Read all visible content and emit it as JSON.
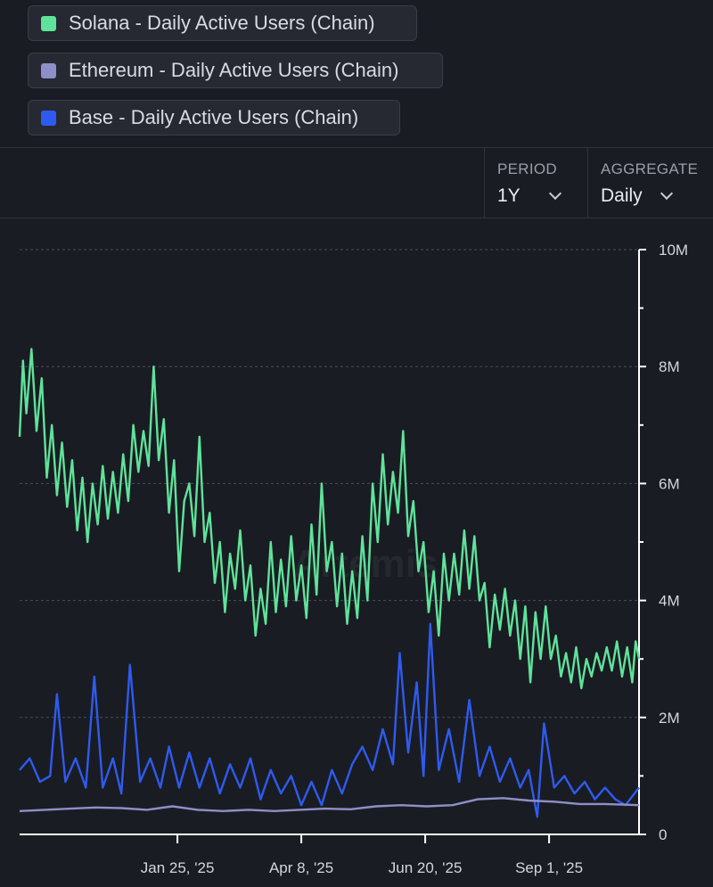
{
  "legend": [
    {
      "label": "Solana - Daily Active Users (Chain)",
      "color": "#5fe39a"
    },
    {
      "label": "Ethereum - Daily Active Users (Chain)",
      "color": "#8d8fc9"
    },
    {
      "label": "Base - Daily Active Users (Chain)",
      "color": "#2e5bef"
    }
  ],
  "controls": {
    "period": {
      "title": "PERIOD",
      "value": "1Y"
    },
    "aggregate": {
      "title": "AGGREGATE",
      "value": "Daily"
    }
  },
  "watermark": "Artemis",
  "chart_data": {
    "type": "line",
    "ylim": [
      0,
      10000000
    ],
    "y_ticks": [
      {
        "value": 0,
        "label": "0"
      },
      {
        "value": 2000000,
        "label": "2M"
      },
      {
        "value": 4000000,
        "label": "4M"
      },
      {
        "value": 6000000,
        "label": "6M"
      },
      {
        "value": 8000000,
        "label": "8M"
      },
      {
        "value": 10000000,
        "label": "10M"
      }
    ],
    "x_start": "2024-10-24",
    "x_end": "2025-10-24",
    "x_ticks": [
      {
        "date": "2025-01-25",
        "label": "Jan 25, '25"
      },
      {
        "date": "2025-04-08",
        "label": "Apr 8, '25"
      },
      {
        "date": "2025-06-20",
        "label": "Jun 20, '25"
      },
      {
        "date": "2025-09-01",
        "label": "Sep 1, '25"
      }
    ],
    "grid": true,
    "series": [
      {
        "name": "Solana - Daily Active Users (Chain)",
        "color": "#5fe39a",
        "points": [
          [
            "2024-10-24",
            6.8
          ],
          [
            "2024-10-26",
            8.1
          ],
          [
            "2024-10-28",
            7.2
          ],
          [
            "2024-10-31",
            8.3
          ],
          [
            "2024-11-03",
            6.9
          ],
          [
            "2024-11-06",
            7.8
          ],
          [
            "2024-11-09",
            6.1
          ],
          [
            "2024-11-12",
            7.0
          ],
          [
            "2024-11-15",
            5.8
          ],
          [
            "2024-11-18",
            6.7
          ],
          [
            "2024-11-21",
            5.6
          ],
          [
            "2024-11-24",
            6.4
          ],
          [
            "2024-11-27",
            5.2
          ],
          [
            "2024-11-30",
            6.1
          ],
          [
            "2024-12-03",
            5.0
          ],
          [
            "2024-12-06",
            6.0
          ],
          [
            "2024-12-09",
            5.3
          ],
          [
            "2024-12-12",
            6.3
          ],
          [
            "2024-12-15",
            5.4
          ],
          [
            "2024-12-18",
            6.2
          ],
          [
            "2024-12-21",
            5.5
          ],
          [
            "2024-12-24",
            6.5
          ],
          [
            "2024-12-27",
            5.7
          ],
          [
            "2024-12-30",
            7.0
          ],
          [
            "2025-01-02",
            6.2
          ],
          [
            "2025-01-05",
            6.9
          ],
          [
            "2025-01-08",
            6.3
          ],
          [
            "2025-01-11",
            8.0
          ],
          [
            "2025-01-14",
            6.4
          ],
          [
            "2025-01-17",
            7.1
          ],
          [
            "2025-01-20",
            5.5
          ],
          [
            "2025-01-23",
            6.4
          ],
          [
            "2025-01-26",
            4.5
          ],
          [
            "2025-01-29",
            5.7
          ],
          [
            "2025-02-01",
            6.0
          ],
          [
            "2025-02-04",
            5.1
          ],
          [
            "2025-02-07",
            6.8
          ],
          [
            "2025-02-10",
            5.0
          ],
          [
            "2025-02-13",
            5.5
          ],
          [
            "2025-02-16",
            4.3
          ],
          [
            "2025-02-19",
            5.0
          ],
          [
            "2025-02-22",
            3.8
          ],
          [
            "2025-02-25",
            4.8
          ],
          [
            "2025-02-28",
            4.2
          ],
          [
            "2025-03-03",
            5.2
          ],
          [
            "2025-03-06",
            4.0
          ],
          [
            "2025-03-09",
            4.6
          ],
          [
            "2025-03-12",
            3.4
          ],
          [
            "2025-03-15",
            4.2
          ],
          [
            "2025-03-18",
            3.6
          ],
          [
            "2025-03-21",
            5.0
          ],
          [
            "2025-03-24",
            3.8
          ],
          [
            "2025-03-27",
            4.7
          ],
          [
            "2025-03-30",
            3.9
          ],
          [
            "2025-04-02",
            5.1
          ],
          [
            "2025-04-05",
            4.0
          ],
          [
            "2025-04-08",
            4.6
          ],
          [
            "2025-04-11",
            3.7
          ],
          [
            "2025-04-14",
            5.3
          ],
          [
            "2025-04-17",
            4.1
          ],
          [
            "2025-04-20",
            6.0
          ],
          [
            "2025-04-23",
            4.5
          ],
          [
            "2025-04-26",
            5.0
          ],
          [
            "2025-04-29",
            3.9
          ],
          [
            "2025-05-02",
            4.8
          ],
          [
            "2025-05-05",
            3.6
          ],
          [
            "2025-05-08",
            4.5
          ],
          [
            "2025-05-11",
            3.7
          ],
          [
            "2025-05-14",
            5.1
          ],
          [
            "2025-05-17",
            4.0
          ],
          [
            "2025-05-20",
            6.0
          ],
          [
            "2025-05-23",
            5.0
          ],
          [
            "2025-05-26",
            6.5
          ],
          [
            "2025-05-29",
            5.3
          ],
          [
            "2025-06-01",
            6.2
          ],
          [
            "2025-06-04",
            5.5
          ],
          [
            "2025-06-07",
            6.9
          ],
          [
            "2025-06-10",
            5.1
          ],
          [
            "2025-06-13",
            5.7
          ],
          [
            "2025-06-16",
            4.5
          ],
          [
            "2025-06-19",
            5.0
          ],
          [
            "2025-06-22",
            3.8
          ],
          [
            "2025-06-25",
            4.5
          ],
          [
            "2025-06-28",
            3.4
          ],
          [
            "2025-07-01",
            4.8
          ],
          [
            "2025-07-04",
            4.0
          ],
          [
            "2025-07-07",
            4.8
          ],
          [
            "2025-07-10",
            4.1
          ],
          [
            "2025-07-13",
            5.2
          ],
          [
            "2025-07-16",
            4.2
          ],
          [
            "2025-07-19",
            5.1
          ],
          [
            "2025-07-22",
            4.0
          ],
          [
            "2025-07-25",
            4.3
          ],
          [
            "2025-07-28",
            3.2
          ],
          [
            "2025-07-31",
            4.1
          ],
          [
            "2025-08-03",
            3.5
          ],
          [
            "2025-08-06",
            4.2
          ],
          [
            "2025-08-09",
            3.4
          ],
          [
            "2025-08-12",
            4.0
          ],
          [
            "2025-08-15",
            3.0
          ],
          [
            "2025-08-18",
            3.9
          ],
          [
            "2025-08-21",
            2.6
          ],
          [
            "2025-08-24",
            3.8
          ],
          [
            "2025-08-27",
            3.0
          ],
          [
            "2025-08-30",
            3.9
          ],
          [
            "2025-09-02",
            3.0
          ],
          [
            "2025-09-05",
            3.4
          ],
          [
            "2025-09-08",
            2.7
          ],
          [
            "2025-09-11",
            3.1
          ],
          [
            "2025-09-14",
            2.6
          ],
          [
            "2025-09-17",
            3.2
          ],
          [
            "2025-09-20",
            2.5
          ],
          [
            "2025-09-23",
            3.0
          ],
          [
            "2025-09-26",
            2.7
          ],
          [
            "2025-09-29",
            3.1
          ],
          [
            "2025-10-02",
            2.8
          ],
          [
            "2025-10-05",
            3.2
          ],
          [
            "2025-10-08",
            2.8
          ],
          [
            "2025-10-11",
            3.3
          ],
          [
            "2025-10-14",
            2.7
          ],
          [
            "2025-10-17",
            3.2
          ],
          [
            "2025-10-20",
            2.6
          ],
          [
            "2025-10-22",
            3.3
          ],
          [
            "2025-10-24",
            3.0
          ]
        ]
      },
      {
        "name": "Ethereum - Daily Active Users (Chain)",
        "color": "#8d8fc9",
        "points": [
          [
            "2024-10-24",
            0.4
          ],
          [
            "2024-11-08",
            0.42
          ],
          [
            "2024-11-23",
            0.44
          ],
          [
            "2024-12-08",
            0.46
          ],
          [
            "2024-12-23",
            0.45
          ],
          [
            "2025-01-07",
            0.42
          ],
          [
            "2025-01-22",
            0.48
          ],
          [
            "2025-02-06",
            0.42
          ],
          [
            "2025-02-21",
            0.4
          ],
          [
            "2025-03-08",
            0.42
          ],
          [
            "2025-03-23",
            0.4
          ],
          [
            "2025-04-07",
            0.42
          ],
          [
            "2025-04-22",
            0.44
          ],
          [
            "2025-05-07",
            0.43
          ],
          [
            "2025-05-22",
            0.48
          ],
          [
            "2025-06-06",
            0.5
          ],
          [
            "2025-06-21",
            0.48
          ],
          [
            "2025-07-06",
            0.5
          ],
          [
            "2025-07-21",
            0.6
          ],
          [
            "2025-08-05",
            0.62
          ],
          [
            "2025-08-20",
            0.58
          ],
          [
            "2025-09-04",
            0.56
          ],
          [
            "2025-09-19",
            0.52
          ],
          [
            "2025-10-04",
            0.52
          ],
          [
            "2025-10-24",
            0.5
          ]
        ]
      },
      {
        "name": "Base - Daily Active Users (Chain)",
        "color": "#2e5bef",
        "points": [
          [
            "2024-10-24",
            1.1
          ],
          [
            "2024-10-30",
            1.3
          ],
          [
            "2024-11-05",
            0.9
          ],
          [
            "2024-11-11",
            1.0
          ],
          [
            "2024-11-15",
            2.4
          ],
          [
            "2024-11-20",
            0.9
          ],
          [
            "2024-11-26",
            1.3
          ],
          [
            "2024-12-02",
            0.8
          ],
          [
            "2024-12-07",
            2.7
          ],
          [
            "2024-12-12",
            0.8
          ],
          [
            "2024-12-18",
            1.3
          ],
          [
            "2024-12-23",
            0.7
          ],
          [
            "2024-12-28",
            2.9
          ],
          [
            "2025-01-03",
            0.9
          ],
          [
            "2025-01-09",
            1.3
          ],
          [
            "2025-01-15",
            0.8
          ],
          [
            "2025-01-20",
            1.5
          ],
          [
            "2025-01-26",
            0.8
          ],
          [
            "2025-02-01",
            1.4
          ],
          [
            "2025-02-07",
            0.8
          ],
          [
            "2025-02-13",
            1.3
          ],
          [
            "2025-02-19",
            0.7
          ],
          [
            "2025-02-25",
            1.2
          ],
          [
            "2025-03-03",
            0.8
          ],
          [
            "2025-03-09",
            1.3
          ],
          [
            "2025-03-15",
            0.6
          ],
          [
            "2025-03-21",
            1.1
          ],
          [
            "2025-03-27",
            0.7
          ],
          [
            "2025-04-02",
            1.0
          ],
          [
            "2025-04-08",
            0.5
          ],
          [
            "2025-04-14",
            0.9
          ],
          [
            "2025-04-20",
            0.5
          ],
          [
            "2025-04-26",
            1.1
          ],
          [
            "2025-05-02",
            0.7
          ],
          [
            "2025-05-08",
            1.2
          ],
          [
            "2025-05-14",
            1.5
          ],
          [
            "2025-05-20",
            1.1
          ],
          [
            "2025-05-26",
            1.8
          ],
          [
            "2025-06-01",
            1.2
          ],
          [
            "2025-06-05",
            3.1
          ],
          [
            "2025-06-10",
            1.4
          ],
          [
            "2025-06-15",
            2.6
          ],
          [
            "2025-06-19",
            1.0
          ],
          [
            "2025-06-23",
            3.6
          ],
          [
            "2025-06-28",
            1.1
          ],
          [
            "2025-07-04",
            1.8
          ],
          [
            "2025-07-10",
            0.9
          ],
          [
            "2025-07-16",
            2.3
          ],
          [
            "2025-07-22",
            1.0
          ],
          [
            "2025-07-28",
            1.5
          ],
          [
            "2025-08-03",
            0.9
          ],
          [
            "2025-08-09",
            1.3
          ],
          [
            "2025-08-15",
            0.8
          ],
          [
            "2025-08-20",
            1.1
          ],
          [
            "2025-08-25",
            0.3
          ],
          [
            "2025-08-29",
            1.9
          ],
          [
            "2025-09-04",
            0.8
          ],
          [
            "2025-09-10",
            1.0
          ],
          [
            "2025-09-16",
            0.7
          ],
          [
            "2025-09-22",
            0.9
          ],
          [
            "2025-09-28",
            0.6
          ],
          [
            "2025-10-04",
            0.8
          ],
          [
            "2025-10-10",
            0.6
          ],
          [
            "2025-10-16",
            0.5
          ],
          [
            "2025-10-24",
            0.8
          ]
        ]
      }
    ]
  }
}
